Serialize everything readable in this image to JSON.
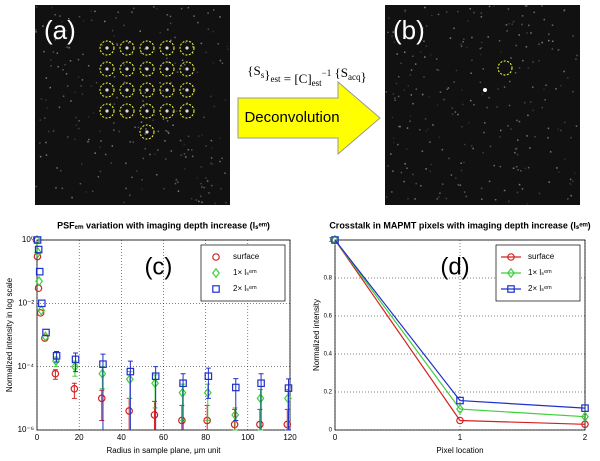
{
  "panels": {
    "a": {
      "label": "(a)"
    },
    "b": {
      "label": "(b)"
    },
    "arrow": {
      "label": "Deconvolution",
      "equation": [
        {
          "text": "{S",
          "style": "base"
        },
        {
          "text": "s",
          "style": "sub"
        },
        {
          "text": "}",
          "style": "base"
        },
        {
          "text": "est",
          "style": "sub"
        },
        {
          "text": " = [C]",
          "style": "base"
        },
        {
          "text": "est",
          "style": "sub"
        },
        {
          "text": "−1",
          "style": "sup"
        },
        {
          "text": " {S",
          "style": "base"
        },
        {
          "text": "acq",
          "style": "sub"
        },
        {
          "text": "}",
          "style": "base"
        }
      ]
    }
  },
  "chart_data": [
    {
      "type": "scatter",
      "title": "PSFₑₘ variation with imaging depth increase (lₛᵉᵐ)",
      "panel_label": "(c)",
      "x_label": "Radius in sample plane, μm unit",
      "y_label": "Normalized intensity in log scale",
      "log_y": true,
      "grid": true,
      "legend": "upper right",
      "xlim": [
        0,
        120
      ],
      "xticks": [
        0,
        20,
        40,
        60,
        80,
        100,
        120
      ],
      "ylim": [
        1e-06,
        1
      ],
      "yticks": [
        {
          "value": 1,
          "label": "10⁰"
        },
        {
          "value": 0.01,
          "label": "10⁻²"
        },
        {
          "value": 0.0001,
          "label": "10⁻⁴"
        },
        {
          "value": 1e-06,
          "label": "10⁻⁶"
        }
      ],
      "x": [
        0,
        0.5,
        1,
        2,
        4,
        9,
        18,
        31,
        44,
        56,
        69,
        81,
        94,
        106,
        119
      ],
      "series": [
        {
          "name": "surface",
          "color": "#d42020",
          "marker": "circle",
          "values": [
            1,
            0.3,
            0.03,
            0.005,
            0.0008,
            6e-05,
            2e-05,
            1e-05,
            4e-06,
            3e-06,
            2e-06,
            2e-06,
            1.5e-06,
            1.5e-06,
            1.5e-06
          ],
          "errors": [
            0,
            0,
            0,
            0,
            0,
            2e-05,
            1e-05,
            8e-06,
            6e-06,
            5e-06,
            4e-06,
            4e-06,
            3e-06,
            3e-06,
            3e-06
          ]
        },
        {
          "name": "1× lₛᵉᵐ",
          "color": "#3ccf3c",
          "marker": "diamond",
          "values": [
            1,
            0.4,
            0.05,
            0.006,
            0.0009,
            0.00015,
            0.0001,
            6e-05,
            4e-05,
            3e-05,
            1.5e-05,
            1.5e-05,
            3e-06,
            1e-05,
            1e-05
          ],
          "errors": [
            0,
            0,
            0,
            0,
            0,
            5e-05,
            5e-05,
            4e-05,
            3e-05,
            2.5e-05,
            1.3e-05,
            1.3e-05,
            2e-06,
            9e-06,
            9e-06
          ]
        },
        {
          "name": "2× lₛᵉᵐ",
          "color": "#2030c8",
          "marker": "square",
          "values": [
            1,
            0.5,
            0.1,
            0.01,
            0.0012,
            0.00022,
            0.00017,
            0.00012,
            7e-05,
            5e-05,
            3e-05,
            5e-05,
            2.2e-05,
            3e-05,
            2.1e-05
          ],
          "errors": [
            0,
            0,
            0,
            0,
            0,
            8e-05,
            0.0001,
            0.00013,
            8e-05,
            5e-05,
            3e-05,
            4e-05,
            2e-05,
            3e-05,
            2e-05
          ]
        }
      ]
    },
    {
      "type": "line",
      "title": "Crosstalk in MAPMT pixels with imaging depth increase (lₛᵉᵐ)",
      "panel_label": "(d)",
      "x_label": "Pixel location",
      "y_label": "Normalized intensity",
      "log_y": false,
      "grid": true,
      "legend": "upper right",
      "xlim": [
        0,
        2
      ],
      "xticks": [
        0,
        1,
        2
      ],
      "ylim": [
        0,
        1
      ],
      "yticks": [
        0,
        0.2,
        0.4,
        0.6,
        0.8,
        1
      ],
      "x": [
        0,
        1,
        2
      ],
      "series": [
        {
          "name": "surface",
          "color": "#d42020",
          "marker": "circle",
          "values": [
            1,
            0.05,
            0.03
          ]
        },
        {
          "name": "1× lₛᵉᵐ",
          "color": "#3ccf3c",
          "marker": "diamond",
          "values": [
            1,
            0.11,
            0.07
          ]
        },
        {
          "name": "2× lₛᵉᵐ",
          "color": "#2030c8",
          "marker": "square",
          "values": [
            1,
            0.155,
            0.115
          ]
        }
      ]
    }
  ]
}
